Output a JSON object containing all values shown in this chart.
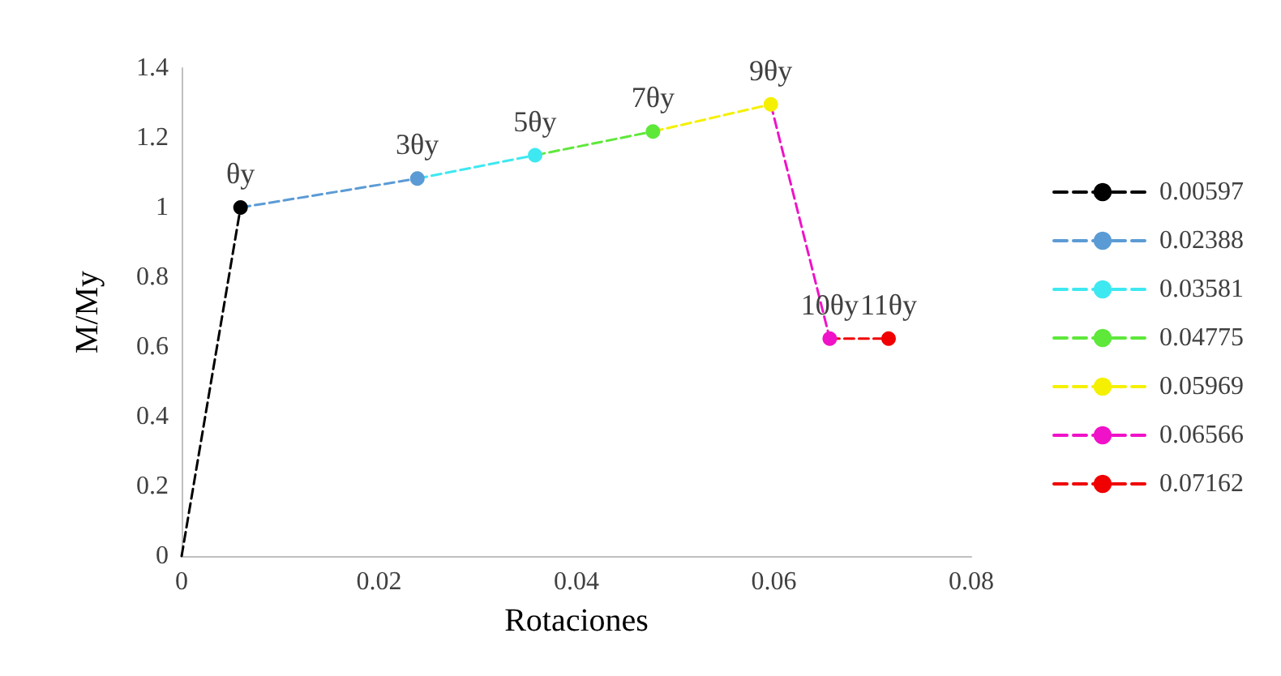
{
  "chart_data": {
    "type": "line",
    "xlabel": "Rotaciones",
    "ylabel": "M/My",
    "xlim": [
      0,
      0.08
    ],
    "xticks": [
      0,
      0.02,
      0.04,
      0.06,
      0.08
    ],
    "ylim": [
      0,
      1.4
    ],
    "yticks": [
      0,
      0.2,
      0.4,
      0.6,
      0.8,
      1,
      1.2,
      1.4
    ],
    "grid": false,
    "legend": "right",
    "marker": "circle",
    "line_style": "dashed",
    "series": [
      {
        "name": "0.00597",
        "color": "#000000",
        "x": [
          0,
          0.00597
        ],
        "values": [
          0,
          1.0
        ]
      },
      {
        "name": "0.02388",
        "color": "#5b9bd5",
        "x": [
          0.00597,
          0.02388
        ],
        "values": [
          1.0,
          1.083
        ]
      },
      {
        "name": "0.03581",
        "color": "#3ee8f0",
        "x": [
          0.02388,
          0.03581
        ],
        "values": [
          1.083,
          1.15
        ]
      },
      {
        "name": "0.04775",
        "color": "#5ee83a",
        "x": [
          0.03581,
          0.04775
        ],
        "values": [
          1.15,
          1.218
        ]
      },
      {
        "name": "0.05969",
        "color": "#f5f000",
        "x": [
          0.04775,
          0.05969
        ],
        "values": [
          1.218,
          1.296
        ]
      },
      {
        "name": "0.06566",
        "color": "#f012c8",
        "x": [
          0.05969,
          0.06566
        ],
        "values": [
          1.296,
          0.624
        ]
      },
      {
        "name": "0.07162",
        "color": "#f00000",
        "x": [
          0.06566,
          0.07162
        ],
        "values": [
          0.624,
          0.624
        ]
      }
    ],
    "annotations": [
      {
        "text": "θy",
        "x": 0.00597,
        "y": 1.0
      },
      {
        "text": "3θy",
        "x": 0.02388,
        "y": 1.083
      },
      {
        "text": "5θy",
        "x": 0.03581,
        "y": 1.15
      },
      {
        "text": "7θy",
        "x": 0.04775,
        "y": 1.218
      },
      {
        "text": "9θy",
        "x": 0.05969,
        "y": 1.296
      },
      {
        "text": "10θy",
        "x": 0.06566,
        "y": 0.624
      },
      {
        "text": "11θy",
        "x": 0.07162,
        "y": 0.624
      }
    ]
  }
}
